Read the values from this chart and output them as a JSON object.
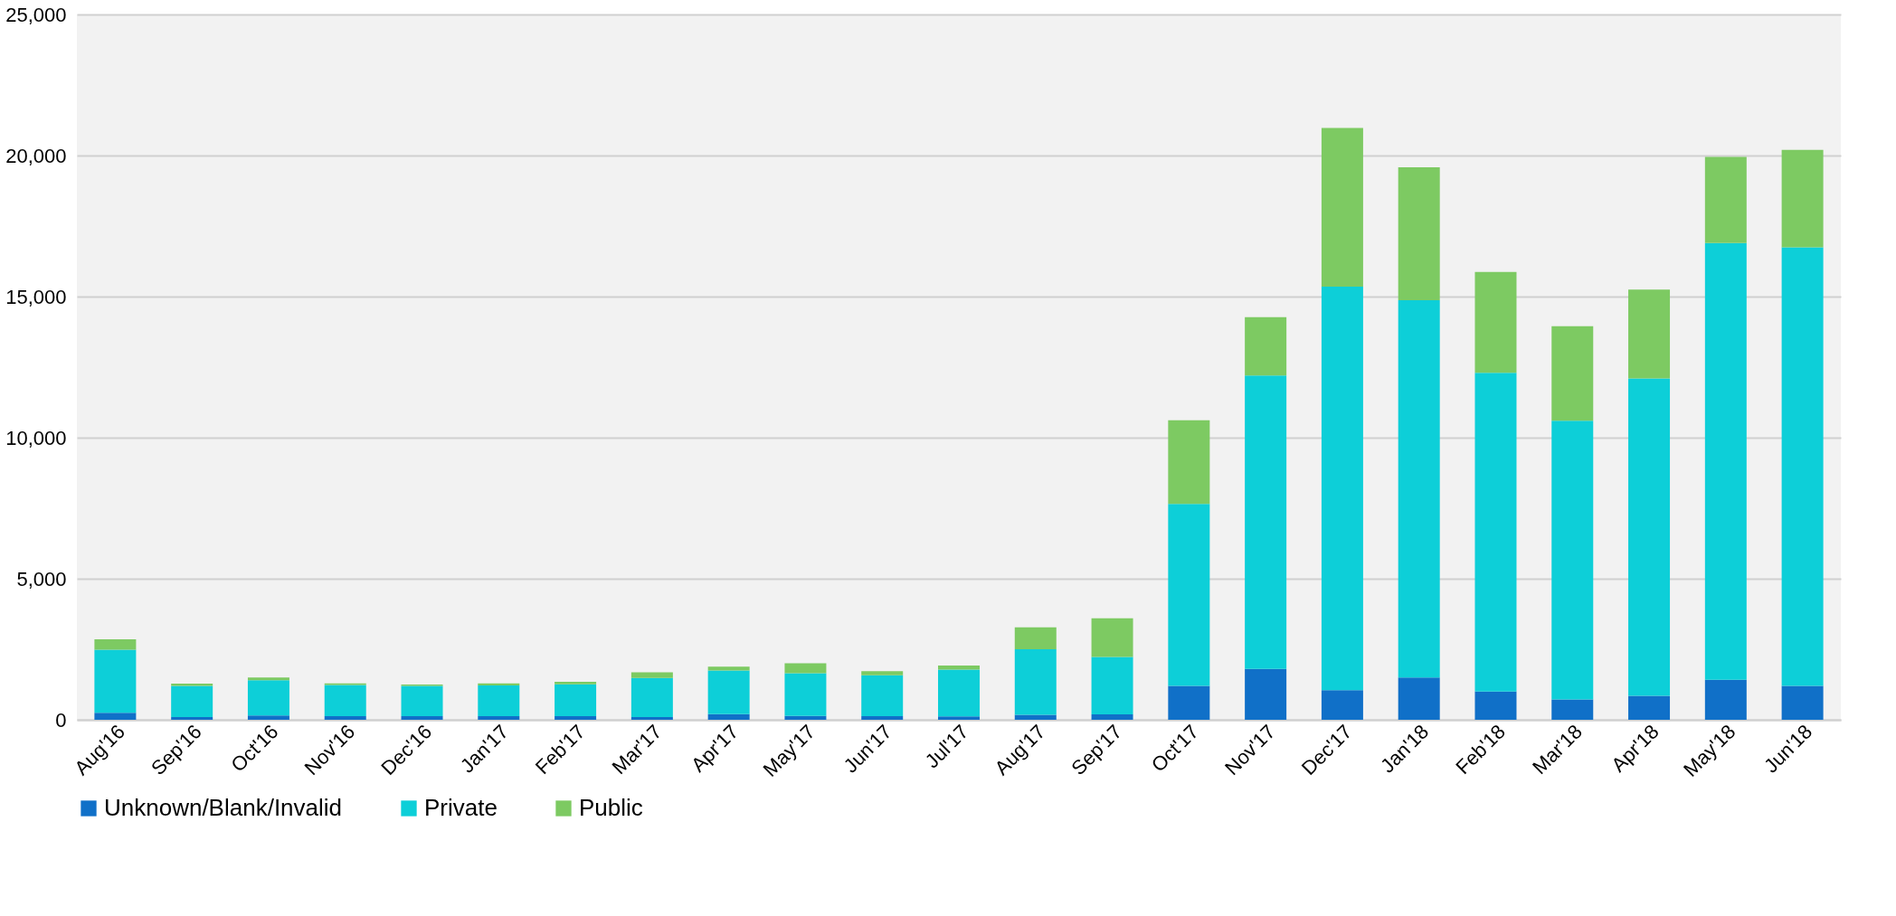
{
  "chart_data": {
    "type": "bar",
    "stacked": true,
    "grid": "y",
    "legend": "bottom",
    "categories": [
      "Aug'16",
      "Sep'16",
      "Oct'16",
      "Nov'16",
      "Dec'16",
      "Jan'17",
      "Feb'17",
      "Mar'17",
      "Apr'17",
      "May'17",
      "Jun'17",
      "Jul'17",
      "Aug'17",
      "Sep'17",
      "Oct'17",
      "Nov'17",
      "Dec'17",
      "Jan'18",
      "Feb'18",
      "Mar'18",
      "Apr'18",
      "May'18",
      "Jun'18"
    ],
    "series": [
      {
        "name": "Unknown/Blank/Invalid",
        "color": "#1070c8",
        "values": [
          250,
          100,
          150,
          130,
          130,
          130,
          130,
          100,
          200,
          140,
          130,
          120,
          180,
          190,
          1200,
          1800,
          1050,
          1500,
          1000,
          720,
          850,
          1420,
          1200
        ]
      },
      {
        "name": "Private",
        "color": "#0dcfd8",
        "values": [
          2230,
          1100,
          1250,
          1100,
          1070,
          1090,
          1130,
          1380,
          1550,
          1510,
          1450,
          1660,
          2320,
          2040,
          6450,
          10400,
          14300,
          13370,
          11300,
          9880,
          11250,
          15480,
          15550
        ]
      },
      {
        "name": "Public",
        "color": "#7dca62",
        "values": [
          370,
          80,
          100,
          60,
          50,
          70,
          90,
          200,
          130,
          350,
          140,
          140,
          780,
          1370,
          2970,
          2070,
          5630,
          4710,
          3570,
          3350,
          3150,
          3050,
          3450
        ]
      }
    ],
    "ylim": [
      0,
      25000
    ],
    "yticks": [
      {
        "value": 0,
        "label": "0"
      },
      {
        "value": 5000,
        "label": "5,000"
      },
      {
        "value": 10000,
        "label": "10,000"
      },
      {
        "value": 15000,
        "label": "15,000"
      },
      {
        "value": 20000,
        "label": "20,000"
      },
      {
        "value": 25000,
        "label": "25,000"
      }
    ]
  }
}
